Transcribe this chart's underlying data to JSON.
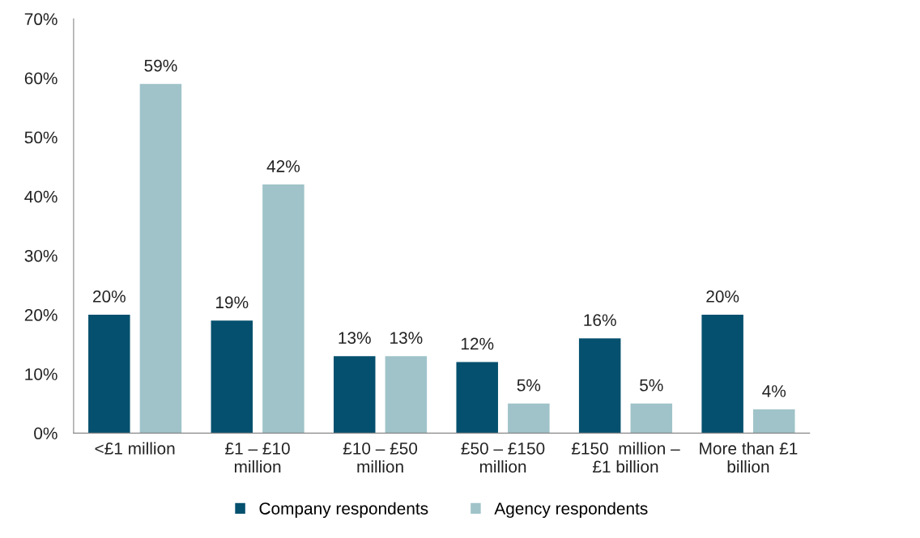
{
  "chart_data": {
    "type": "bar",
    "categories": [
      "<£1 million",
      "£1 – £10\nmillion",
      "£10 – £50\nmillion",
      "£50 – £150\nmillion",
      "£150  million –\n£1 billion",
      "More than £1\nbillion"
    ],
    "series": [
      {
        "name": "Company respondents",
        "color": "#05506e",
        "values": [
          20,
          19,
          13,
          12,
          16,
          20
        ]
      },
      {
        "name": "Agency respondents",
        "color": "#9fc3c9",
        "values": [
          59,
          42,
          13,
          5,
          5,
          4
        ]
      }
    ],
    "ylim": [
      0,
      70
    ],
    "yticks": [
      {
        "value": 0,
        "label": "0%"
      },
      {
        "value": 10,
        "label": "10%"
      },
      {
        "value": 20,
        "label": "20%"
      },
      {
        "value": 30,
        "label": "30%"
      },
      {
        "value": 40,
        "label": "40%"
      },
      {
        "value": 50,
        "label": "50%"
      },
      {
        "value": 60,
        "label": "60%"
      },
      {
        "value": 70,
        "label": "70%"
      }
    ],
    "value_labels": [
      [
        "20%",
        "19%",
        "13%",
        "12%",
        "16%",
        "20%"
      ],
      [
        "59%",
        "42%",
        "13%",
        "5%",
        "5%",
        "4%"
      ]
    ],
    "grid": false,
    "legend": "bottom"
  }
}
